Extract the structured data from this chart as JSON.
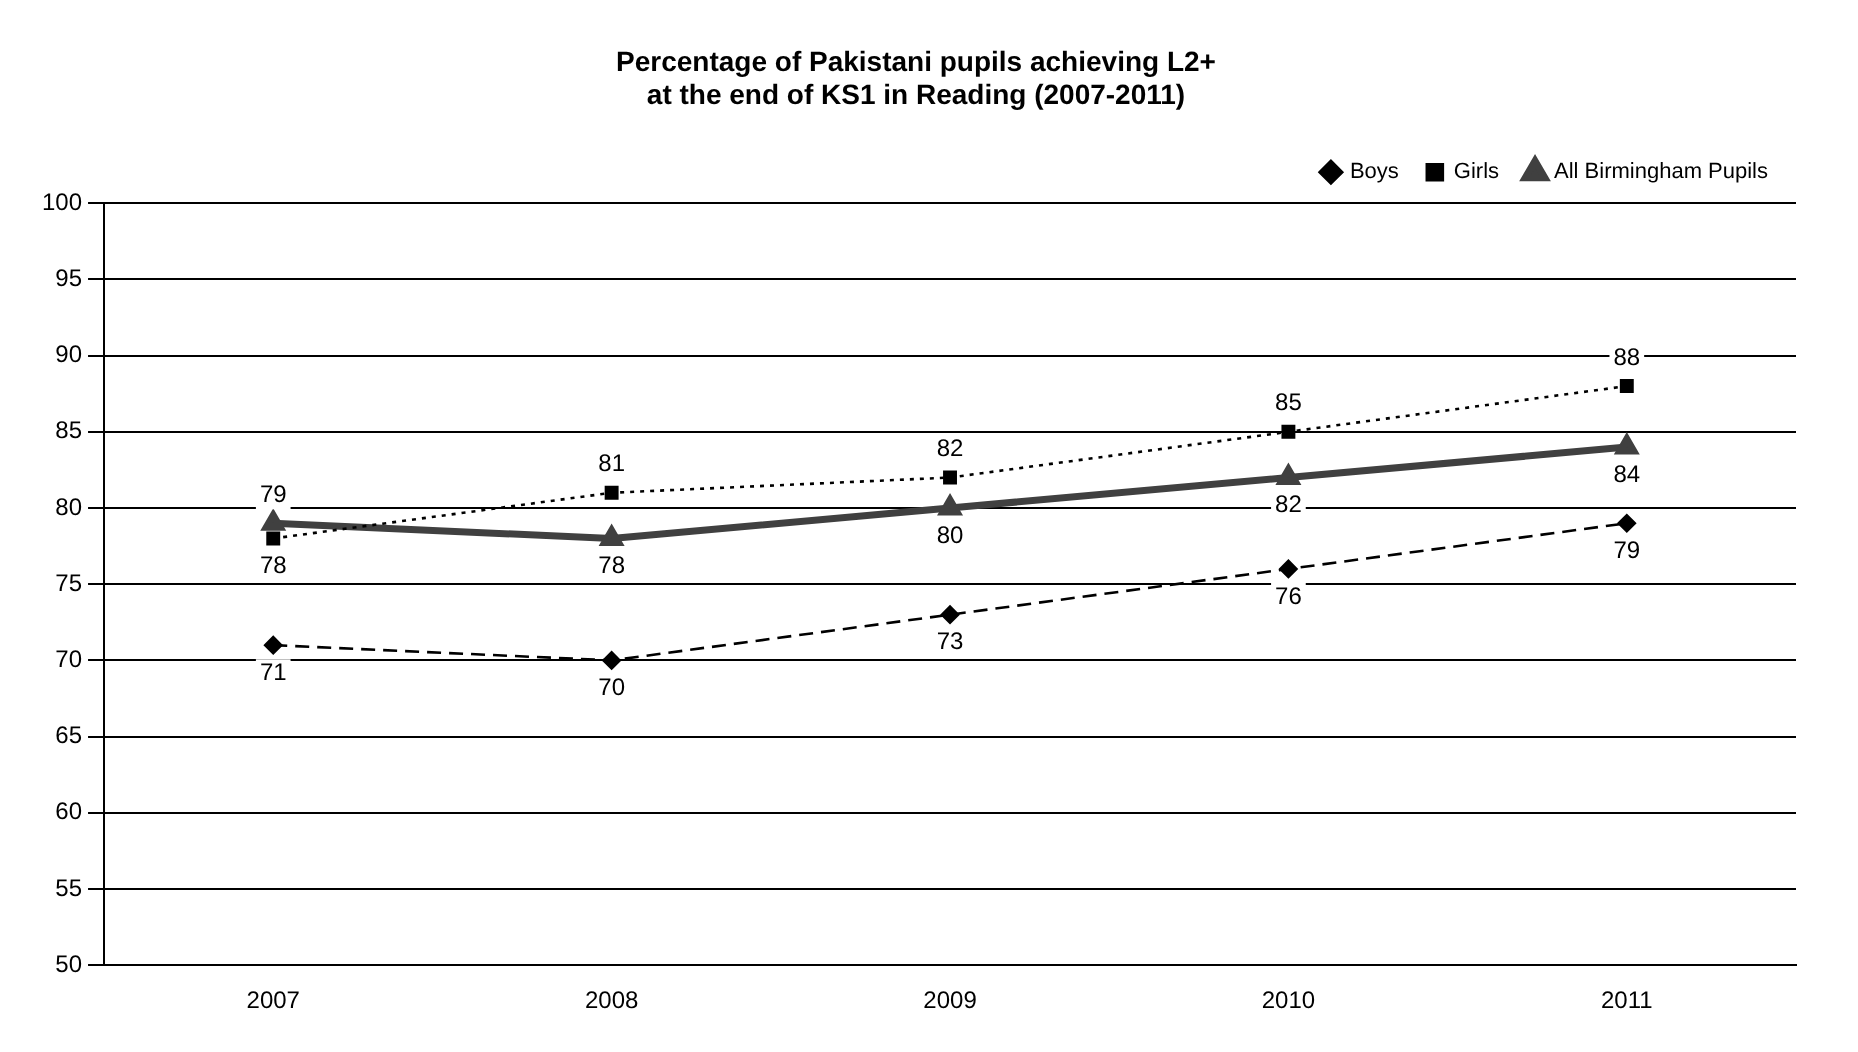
{
  "chart_data": {
    "type": "line",
    "title": "Percentage of Pakistani pupils achieving L2+\nat the end of KS1 in Reading (2007-2011)",
    "categories": [
      "2007",
      "2008",
      "2009",
      "2010",
      "2011"
    ],
    "series": [
      {
        "name": "Boys",
        "color": "#000000",
        "values": [
          71,
          70,
          73,
          76,
          79
        ],
        "marker": "diamond",
        "line_style": "dashed"
      },
      {
        "name": "Girls",
        "color": "#000000",
        "values": [
          78,
          81,
          82,
          85,
          88
        ],
        "marker": "square",
        "line_style": "dotted"
      },
      {
        "name": "All Birmingham Pupils",
        "color": "#404040",
        "values": [
          79,
          78,
          80,
          82,
          84
        ],
        "marker": "triangle",
        "line_style": "solid"
      }
    ],
    "ylim": [
      50,
      100
    ],
    "yticks": [
      50,
      55,
      60,
      65,
      70,
      75,
      80,
      85,
      90,
      95,
      100
    ],
    "grid": "y",
    "legend": "top right",
    "data_labels": true
  }
}
